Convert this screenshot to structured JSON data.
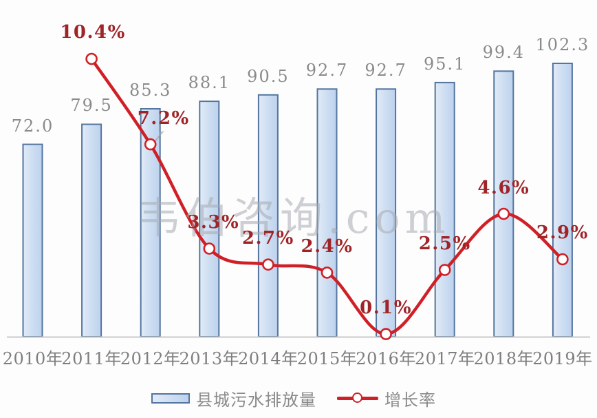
{
  "watermark": {
    "text": "韦伯咨询.com"
  },
  "legend": {
    "items": [
      {
        "label": "县城污水排放量",
        "type": "bar"
      },
      {
        "label": "增长率",
        "type": "line"
      }
    ]
  },
  "chart_data": {
    "type": "bar",
    "combo": "bar series with overlaid smooth line series",
    "title": "",
    "xlabel": "",
    "ylabel": "",
    "categories": [
      "2010年",
      "2011年",
      "2012年",
      "2013年",
      "2014年",
      "2015年",
      "2016年",
      "2017年",
      "2018年",
      "2019年"
    ],
    "series": [
      {
        "name": "县城污水排放量",
        "type": "bar",
        "values": [
          72.0,
          79.5,
          85.3,
          88.1,
          90.5,
          92.7,
          92.7,
          95.1,
          99.4,
          102.3
        ],
        "labels": [
          "72.0",
          "79.5",
          "85.3",
          "88.1",
          "90.5",
          "92.7",
          "92.7",
          "95.1",
          "99.4",
          "102.3"
        ]
      },
      {
        "name": "增长率",
        "type": "line",
        "unit": "%",
        "values": [
          null,
          10.4,
          7.2,
          3.3,
          2.7,
          2.4,
          0.1,
          2.5,
          4.6,
          2.9
        ],
        "labels": [
          null,
          "10.4%",
          "7.2%",
          "3.3%",
          "2.7%",
          "2.4%",
          "0.1%",
          "2.5%",
          "4.6%",
          "2.9%"
        ]
      }
    ],
    "value_axes_visible": false,
    "gridlines": false,
    "legend_position": "bottom",
    "colors": {
      "bar_fill_light": "#e2ebf7",
      "bar_fill": "#cfdff2",
      "bar_fill_dark": "#bdd2ee",
      "bar_border": "#54759f",
      "line": "#d02027",
      "marker_fill": "#ffffff",
      "pct_label": "#9f2428",
      "value_label": "#8a8a8a",
      "axis_label": "#7e7e7e",
      "axis_line": "#c9c9c9",
      "watermark": "#a6abb3",
      "cursor_artifact": "#9ba1a9"
    }
  }
}
